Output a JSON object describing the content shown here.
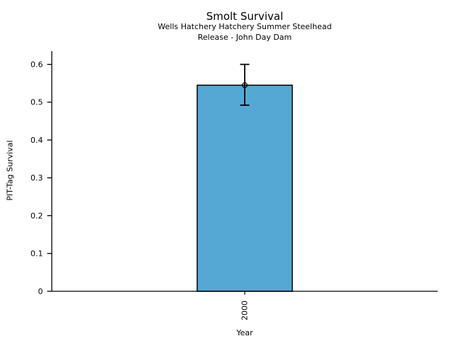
{
  "figure": {
    "title": "Smolt Survival",
    "subtitle_line1": "Wells Hatchery Hatchery Summer Steelhead",
    "subtitle_line2": "Release - John Day Dam"
  },
  "chart_data": {
    "type": "bar",
    "title": "Smolt Survival",
    "subtitle": [
      "Wells Hatchery Hatchery Summer Steelhead",
      "Release - John Day Dam"
    ],
    "xlabel": "Year",
    "ylabel": "PIT-Tag Survival",
    "categories": [
      "2000"
    ],
    "series": [
      {
        "name": "PIT-Tag Survival",
        "values": [
          0.545
        ]
      }
    ],
    "error_bars": [
      {
        "low": 0.492,
        "high": 0.6
      }
    ],
    "marker": "open-circle",
    "ylim": [
      0,
      0.635
    ],
    "yticks": [
      0,
      0.1,
      0.2,
      0.3,
      0.4,
      0.5,
      0.6
    ],
    "ytick_labels": [
      "0",
      "0.1",
      "0.2",
      "0.3",
      "0.4",
      "0.5",
      "0.6"
    ],
    "xtick_labels": [
      "2000"
    ],
    "xtick_rotation_deg": 90,
    "grid": false,
    "legend": false,
    "bar_color": "#56A8D4",
    "bar_edge_color": "#000000",
    "error_color": "#000000",
    "axis_color": "#000000",
    "background": "#FFFFFF"
  }
}
